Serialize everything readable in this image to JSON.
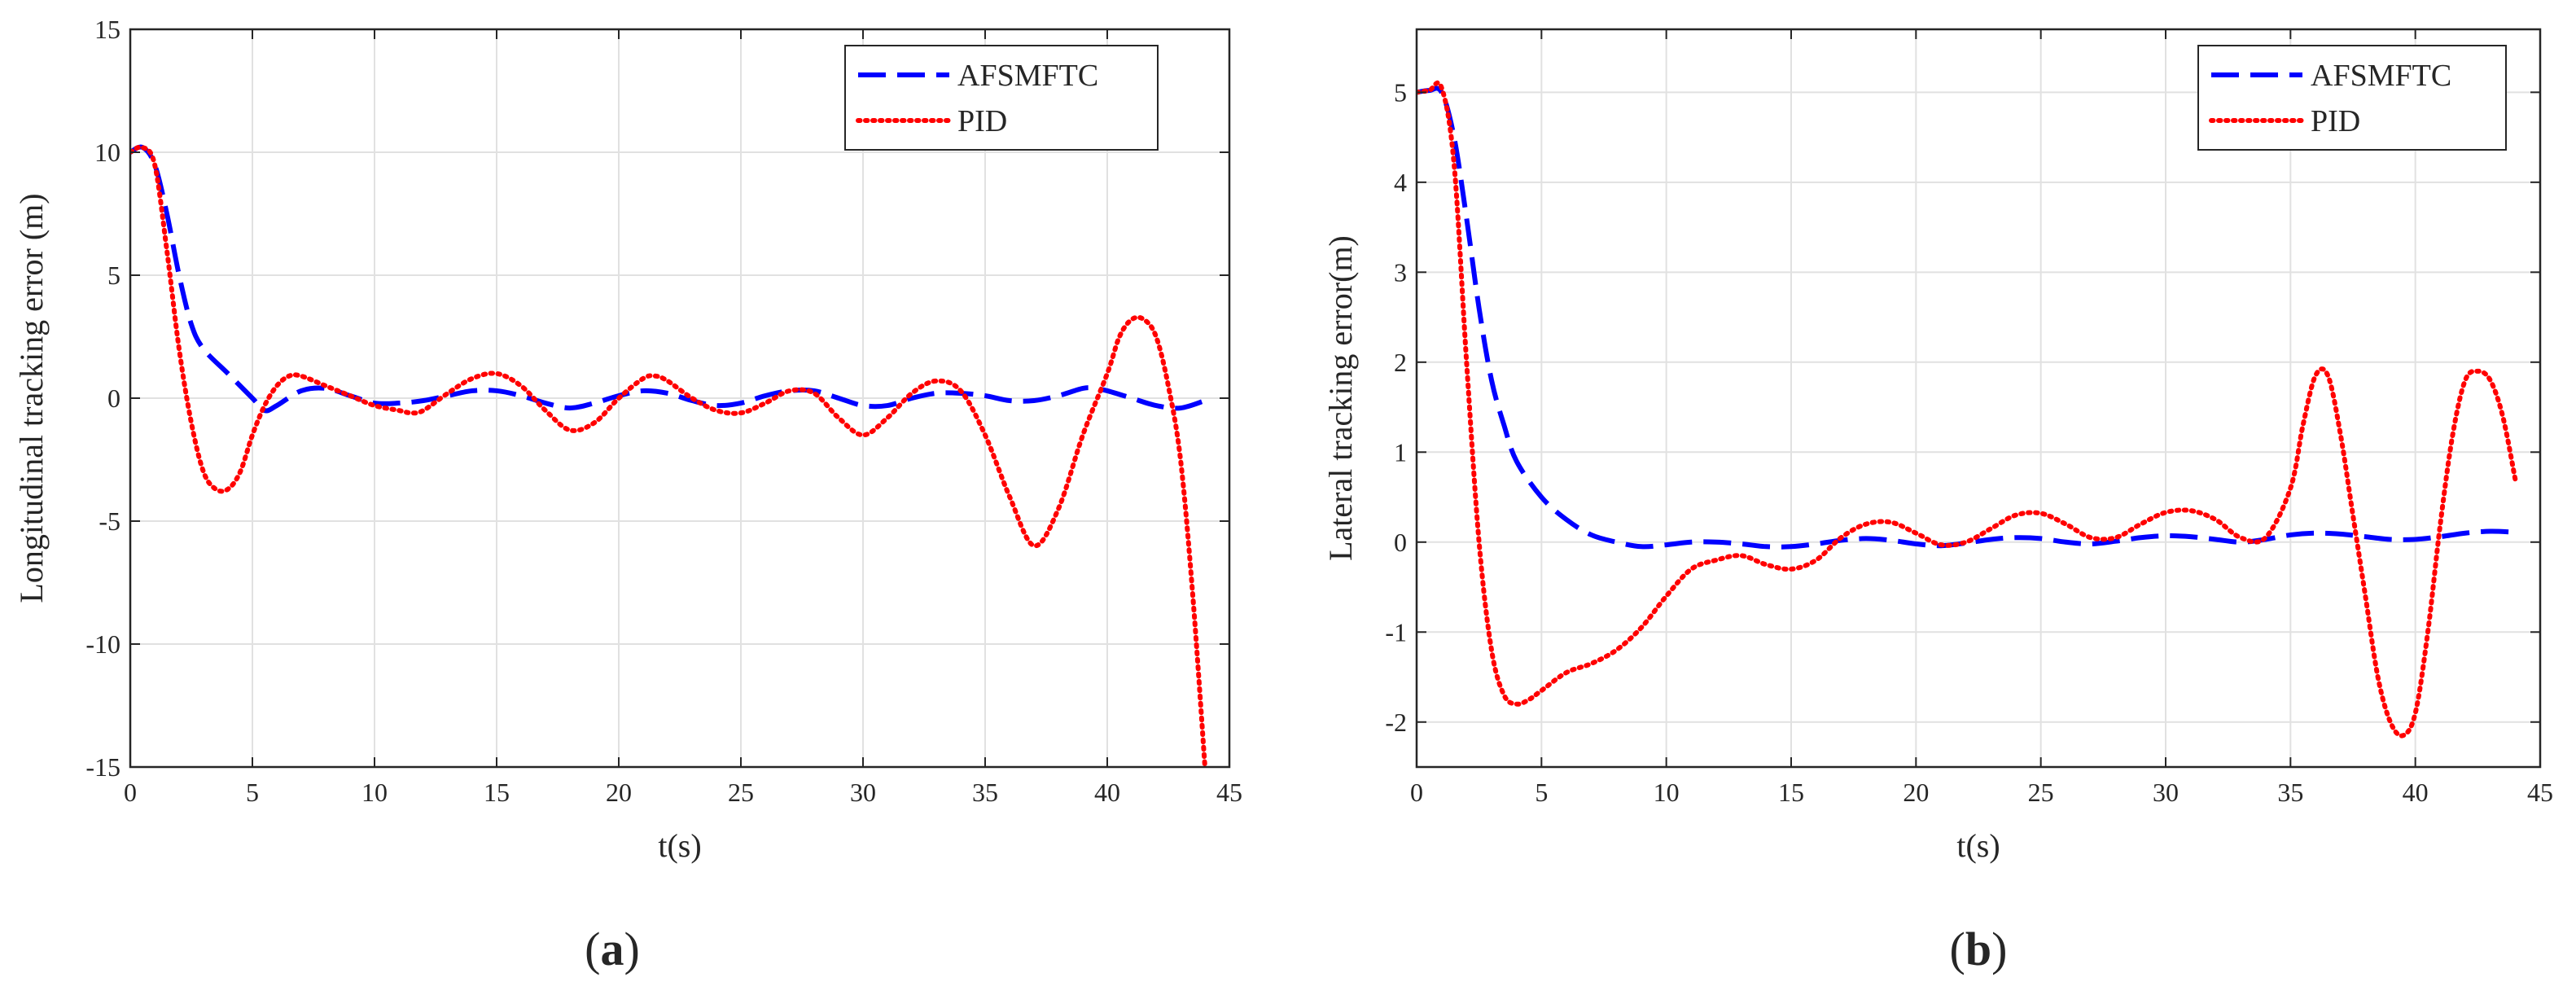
{
  "chart_data": [
    {
      "type": "line",
      "panel_label": "(a)",
      "xlabel": "t(s)",
      "ylabel": "Longitudinal tracking error (m)",
      "xlim": [
        0,
        45
      ],
      "ylim": [
        -15,
        15
      ],
      "xticks": [
        0,
        5,
        10,
        15,
        20,
        25,
        30,
        35,
        40,
        45
      ],
      "yticks": [
        -15,
        -10,
        -5,
        0,
        5,
        10,
        15
      ],
      "grid": true,
      "legend_position": "top-right",
      "series": [
        {
          "name": "AFSMFTC",
          "color": "#0000ff",
          "style": "dashed",
          "x": [
            0,
            0.5,
            1,
            1.5,
            2,
            2.5,
            3,
            4,
            5,
            5.5,
            6,
            7,
            8,
            9,
            10,
            11,
            12,
            13,
            14,
            15,
            16,
            17,
            18,
            19,
            20,
            21,
            22,
            23,
            24,
            25,
            26,
            27,
            28,
            29,
            30,
            31,
            32,
            33,
            34,
            35,
            36,
            37,
            38,
            39,
            39.5,
            40,
            41,
            42,
            43,
            44
          ],
          "y": [
            10,
            10.2,
            9.5,
            7.5,
            5,
            3,
            2,
            1,
            0,
            -0.5,
            -0.3,
            0.3,
            0.4,
            0.1,
            -0.2,
            -0.2,
            -0.1,
            0.1,
            0.3,
            0.3,
            0.1,
            -0.2,
            -0.4,
            -0.2,
            0.1,
            0.3,
            0.2,
            -0.1,
            -0.3,
            -0.2,
            0.1,
            0.3,
            0.3,
            0,
            -0.3,
            -0.3,
            0,
            0.2,
            0.2,
            0.1,
            -0.1,
            -0.1,
            0.1,
            0.4,
            0.4,
            0.3,
            0,
            -0.3,
            -0.4,
            -0.1
          ]
        },
        {
          "name": "PID",
          "color": "#ff0000",
          "style": "dotted",
          "x": [
            0,
            0.5,
            1,
            1.5,
            2,
            2.5,
            3,
            3.5,
            4,
            4.5,
            5,
            5.5,
            6,
            6.5,
            7,
            8,
            9,
            10,
            11,
            11.5,
            12,
            13,
            14,
            15,
            16,
            17,
            18,
            19,
            20,
            21,
            21.5,
            22,
            23,
            24,
            25,
            26,
            27,
            28,
            29,
            30,
            31,
            32,
            33,
            34,
            35,
            36,
            37,
            38,
            39,
            40,
            40.5,
            41,
            41.5,
            42,
            42.5,
            43,
            43.5,
            44
          ],
          "y": [
            10,
            10.2,
            9.5,
            6,
            2,
            -1,
            -3,
            -3.7,
            -3.7,
            -3,
            -1.5,
            -0.3,
            0.5,
            0.9,
            0.9,
            0.5,
            0.1,
            -0.3,
            -0.5,
            -0.6,
            -0.5,
            0.2,
            0.8,
            1,
            0.5,
            -0.5,
            -1.3,
            -1,
            0,
            0.8,
            0.9,
            0.7,
            0,
            -0.5,
            -0.6,
            -0.2,
            0.3,
            0.2,
            -0.8,
            -1.5,
            -0.8,
            0.2,
            0.7,
            0.3,
            -1.5,
            -4,
            -6,
            -4.5,
            -1.5,
            1,
            2.5,
            3.2,
            3.2,
            2.5,
            0.5,
            -2.5,
            -8,
            -15
          ]
        }
      ]
    },
    {
      "type": "line",
      "panel_label": "(b)",
      "xlabel": "t(s)",
      "ylabel": "Lateral tracking error(m)",
      "xlim": [
        0,
        45
      ],
      "ylim": [
        -2.5,
        5.7
      ],
      "xticks": [
        0,
        5,
        10,
        15,
        20,
        25,
        30,
        35,
        40,
        45
      ],
      "yticks": [
        -2,
        -1,
        0,
        1,
        2,
        3,
        4,
        5
      ],
      "grid": true,
      "legend_position": "top-right",
      "series": [
        {
          "name": "AFSMFTC",
          "color": "#0000ff",
          "style": "dashed",
          "x": [
            0,
            0.5,
            1,
            1.5,
            2,
            2.5,
            3,
            3.5,
            4,
            5,
            6,
            7,
            8,
            9,
            10,
            11,
            12,
            13,
            14,
            15,
            16,
            17,
            18,
            19,
            20,
            21,
            22,
            23,
            24,
            25,
            26,
            27,
            28,
            29,
            30,
            31,
            32,
            33,
            34,
            35,
            36,
            37,
            38,
            39,
            40,
            41,
            42,
            43,
            44
          ],
          "y": [
            5,
            5.02,
            5,
            4.5,
            3.6,
            2.6,
            1.8,
            1.3,
            0.9,
            0.5,
            0.25,
            0.08,
            0,
            -0.05,
            -0.03,
            0,
            0,
            -0.02,
            -0.05,
            -0.05,
            -0.02,
            0.02,
            0.04,
            0.02,
            -0.02,
            -0.04,
            -0.01,
            0.03,
            0.05,
            0.04,
            0,
            -0.02,
            0.01,
            0.05,
            0.07,
            0.06,
            0.03,
            0,
            0.03,
            0.08,
            0.1,
            0.09,
            0.06,
            0.03,
            0.03,
            0.06,
            0.1,
            0.12,
            0.11
          ]
        },
        {
          "name": "PID",
          "color": "#ff0000",
          "style": "dotted",
          "x": [
            0,
            0.5,
            1,
            1.5,
            2,
            2.5,
            3,
            3.5,
            4,
            4.5,
            5,
            6,
            7,
            8,
            9,
            10,
            11,
            12,
            13,
            14,
            15,
            16,
            17,
            18,
            19,
            20,
            21,
            22,
            23,
            24,
            25,
            26,
            27,
            28,
            29,
            30,
            31,
            32,
            33,
            34,
            35,
            35.5,
            36,
            36.5,
            37,
            37.5,
            38,
            38.5,
            39,
            39.5,
            40,
            40.5,
            41,
            41.5,
            42,
            42.5,
            43,
            43.5,
            44
          ],
          "y": [
            5,
            5.02,
            5.05,
            4.2,
            2,
            0,
            -1.2,
            -1.7,
            -1.8,
            -1.75,
            -1.65,
            -1.45,
            -1.35,
            -1.2,
            -0.95,
            -0.6,
            -0.3,
            -0.2,
            -0.15,
            -0.25,
            -0.3,
            -0.2,
            0.05,
            0.2,
            0.22,
            0.1,
            -0.03,
            0,
            0.15,
            0.3,
            0.32,
            0.2,
            0.05,
            0.05,
            0.2,
            0.33,
            0.35,
            0.25,
            0.05,
            0.05,
            0.6,
            1.3,
            1.85,
            1.85,
            1.2,
            0.3,
            -0.6,
            -1.5,
            -2,
            -2.15,
            -1.9,
            -1,
            0.2,
            1.2,
            1.8,
            1.9,
            1.8,
            1.4,
            0.7
          ]
        }
      ]
    }
  ]
}
